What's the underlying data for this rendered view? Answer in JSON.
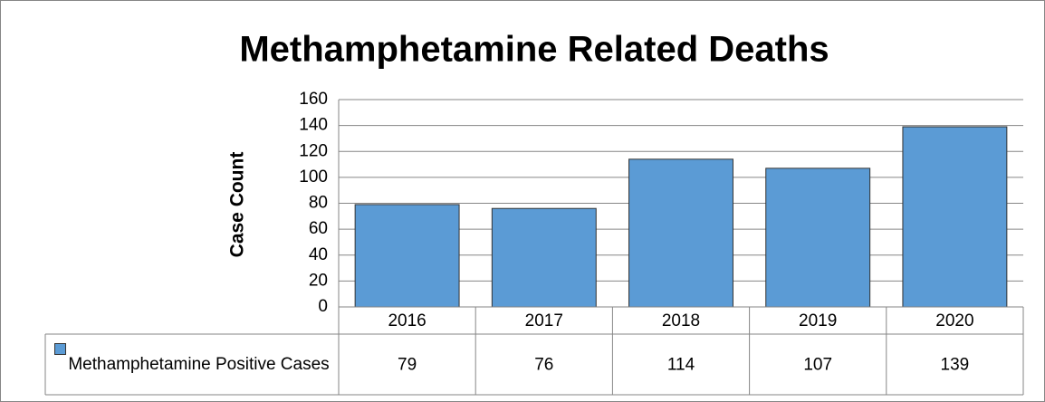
{
  "chart_data": {
    "type": "bar",
    "title": "Methamphetamine Related Deaths",
    "y_label": "Case Count",
    "categories": [
      "2016",
      "2017",
      "2018",
      "2019",
      "2020"
    ],
    "series": [
      {
        "name": "Methamphetamine Positive Cases",
        "color": "#5b9bd5",
        "values": [
          79,
          76,
          114,
          107,
          139
        ]
      }
    ],
    "ylim": [
      0,
      160
    ],
    "yticks": [
      0,
      20,
      40,
      60,
      80,
      100,
      120,
      140,
      160
    ],
    "grid": true,
    "data_table": true
  }
}
